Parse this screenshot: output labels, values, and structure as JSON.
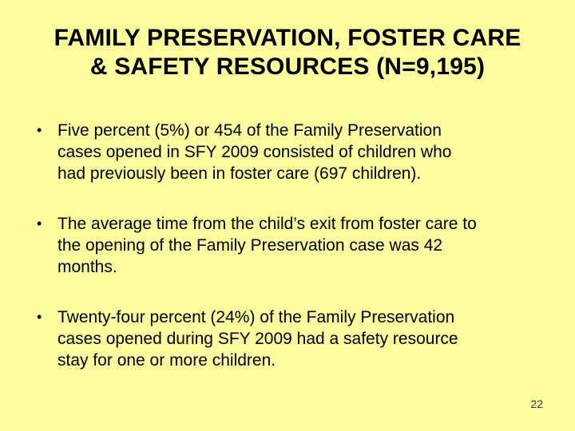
{
  "slide": {
    "background_color": "#FCFC9E",
    "text_color": "#000000",
    "page_number_color": "#3a3a3a",
    "title": "FAMILY PRESERVATION, FOSTER CARE\n& SAFETY RESOURCES (N=9,195)",
    "bullet_char": "•",
    "bullets": [
      {
        "text": "Five percent (5%) or 454 of the Family Preservation\ncases opened in SFY 2009 consisted of children who\nhad previously been in foster care (697 children)."
      },
      {
        "text": "The average time from the child’s exit from foster care to\nthe opening of the Family Preservation case was 42\nmonths."
      },
      {
        "text": "Twenty-four percent (24%) of the Family Preservation\ncases opened during SFY 2009 had a safety resource\nstay for one or more children."
      }
    ],
    "page_number": "22"
  }
}
